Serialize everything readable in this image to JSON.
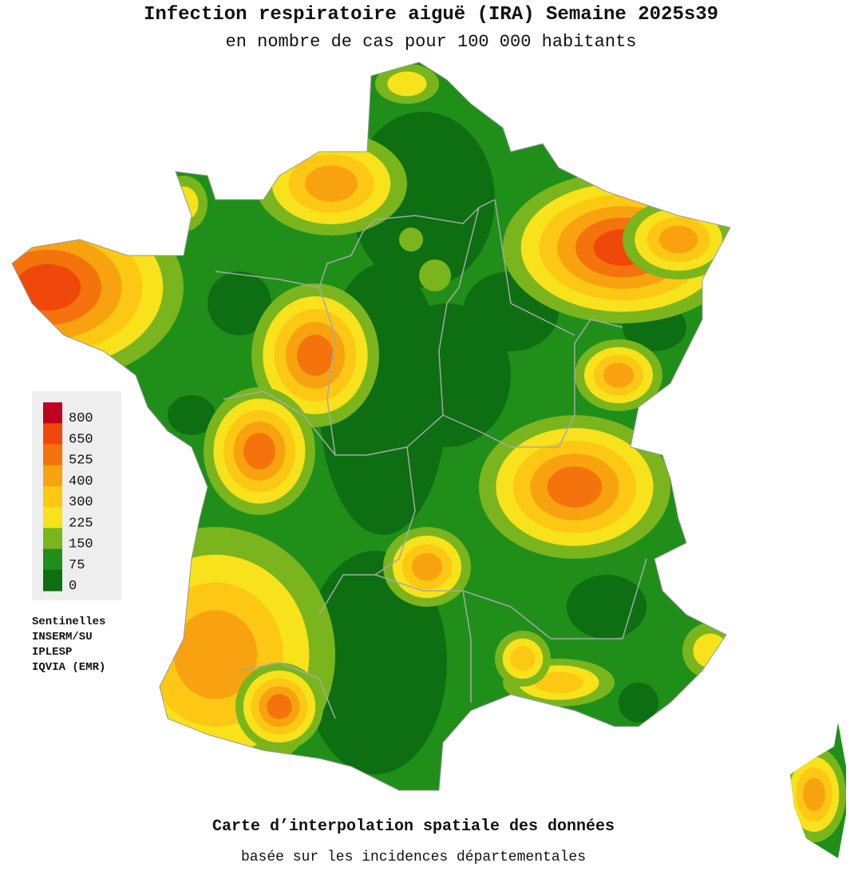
{
  "header": {
    "title": "Infection respiratoire aiguë (IRA) Semaine 2025s39",
    "subtitle": "en nombre de cas pour 100 000 habitants"
  },
  "legend": {
    "items": [
      {
        "value": 800,
        "color": "#c0001e"
      },
      {
        "value": 650,
        "color": "#f0480b"
      },
      {
        "value": 525,
        "color": "#f5730c"
      },
      {
        "value": 400,
        "color": "#f9a20f"
      },
      {
        "value": 300,
        "color": "#fcc814"
      },
      {
        "value": 225,
        "color": "#f7e21c"
      },
      {
        "value": 150,
        "color": "#7ab51d"
      },
      {
        "value": 75,
        "color": "#1f8f1a"
      },
      {
        "value": 0,
        "color": "#0d6e12"
      }
    ]
  },
  "sources": [
    "Sentinelles",
    "INSERM/SU",
    "IPLESP",
    "IQVIA (EMR)"
  ],
  "footer": {
    "title": "Carte d’interpolation spatiale des données",
    "subtitle": "basée sur les incidences départementales"
  }
}
